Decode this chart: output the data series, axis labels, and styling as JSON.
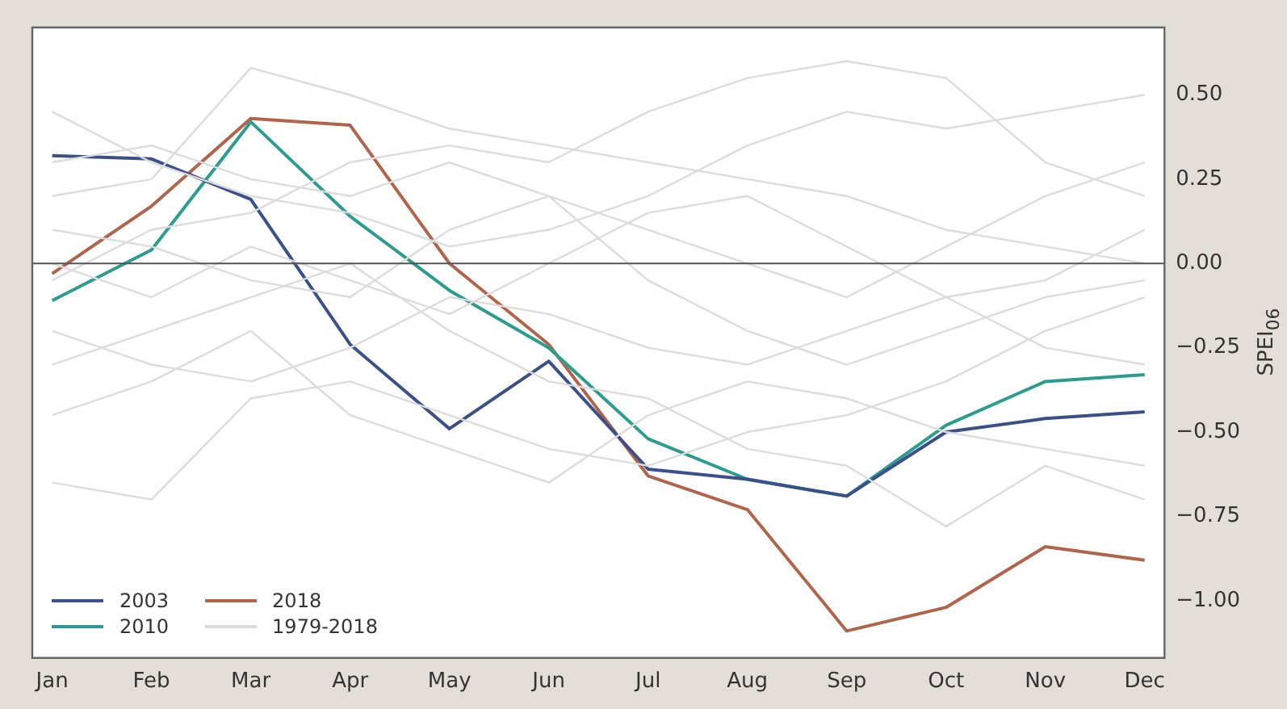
{
  "chart_data": {
    "type": "line",
    "ylabel": "SPEI$_{06}$",
    "categories": [
      "Jan",
      "Feb",
      "Mar",
      "Apr",
      "May",
      "Jun",
      "Jul",
      "Aug",
      "Sep",
      "Oct",
      "Nov",
      "Dec"
    ],
    "ylim": [
      -1.17,
      0.7
    ],
    "yticks": [
      {
        "value": 0.5,
        "label": "0.50"
      },
      {
        "value": 0.25,
        "label": "0.25"
      },
      {
        "value": 0,
        "label": "0.00"
      },
      {
        "value": -0.25,
        "label": "−0.25"
      },
      {
        "value": -0.5,
        "label": "−0.50"
      },
      {
        "value": -0.75,
        "label": "−0.75"
      },
      {
        "value": -1,
        "label": "−1.00"
      }
    ],
    "grid": false,
    "legend": "bottom left",
    "marker": "none",
    "line_style": "solid",
    "ref_lines": [
      {
        "axis": "y",
        "value": 0,
        "color": "#555555"
      }
    ],
    "series": [
      {
        "name": "1979-2018",
        "color": "#dcdcdc",
        "values": [
          0.45,
          0.3,
          0.2,
          0.15,
          0.05,
          0.1,
          0.2,
          0.35,
          0.45,
          0.4,
          0.45,
          0.5
        ]
      },
      {
        "color": "#dcdcdc",
        "values": [
          0.2,
          0.25,
          0.58,
          0.5,
          0.4,
          0.35,
          0.3,
          0.25,
          0.2,
          0.1,
          0.05,
          0.0
        ]
      },
      {
        "color": "#dcdcdc",
        "values": [
          -0.05,
          0.1,
          0.15,
          0.3,
          0.35,
          0.3,
          0.45,
          0.55,
          0.6,
          0.55,
          0.3,
          0.2
        ]
      },
      {
        "color": "#dcdcdc",
        "values": [
          -0.65,
          -0.7,
          -0.4,
          -0.35,
          -0.45,
          -0.55,
          -0.6,
          -0.5,
          -0.45,
          -0.35,
          -0.2,
          -0.1
        ]
      },
      {
        "color": "#dcdcdc",
        "values": [
          -0.3,
          -0.2,
          -0.1,
          0.0,
          -0.2,
          -0.35,
          -0.4,
          -0.55,
          -0.6,
          -0.78,
          -0.6,
          -0.7
        ]
      },
      {
        "color": "#dcdcdc",
        "values": [
          0.1,
          0.05,
          -0.05,
          -0.1,
          0.1,
          0.2,
          0.1,
          0.0,
          -0.1,
          0.05,
          0.2,
          0.3
        ]
      },
      {
        "color": "#dcdcdc",
        "values": [
          0.3,
          0.35,
          0.25,
          0.2,
          0.3,
          0.2,
          -0.05,
          -0.2,
          -0.3,
          -0.2,
          -0.1,
          -0.05
        ]
      },
      {
        "color": "#dcdcdc",
        "values": [
          -0.45,
          -0.35,
          -0.2,
          -0.45,
          -0.55,
          -0.65,
          -0.45,
          -0.35,
          -0.4,
          -0.5,
          -0.55,
          -0.6
        ]
      },
      {
        "color": "#dcdcdc",
        "values": [
          0.0,
          -0.1,
          0.05,
          -0.05,
          -0.15,
          0.0,
          0.15,
          0.2,
          0.05,
          -0.1,
          -0.05,
          0.1
        ]
      },
      {
        "color": "#dcdcdc",
        "values": [
          -0.2,
          -0.3,
          -0.35,
          -0.25,
          -0.1,
          -0.15,
          -0.25,
          -0.3,
          -0.2,
          -0.1,
          -0.25,
          -0.3
        ]
      },
      {
        "name": "2003",
        "color": "#3b4f8a",
        "values": [
          0.32,
          0.31,
          0.19,
          -0.24,
          -0.49,
          -0.29,
          -0.61,
          -0.64,
          -0.69,
          -0.5,
          -0.46,
          -0.44
        ]
      },
      {
        "name": "2010",
        "color": "#2a9d8f",
        "values": [
          -0.11,
          0.04,
          0.42,
          0.14,
          -0.08,
          -0.25,
          -0.52,
          -0.64,
          -0.69,
          -0.48,
          -0.35,
          -0.33
        ]
      },
      {
        "name": "2018",
        "color": "#b0654a",
        "values": [
          -0.03,
          0.17,
          0.43,
          0.41,
          0.0,
          -0.24,
          -0.63,
          -0.73,
          -1.09,
          -1.02,
          -0.84,
          -0.88
        ]
      }
    ]
  }
}
